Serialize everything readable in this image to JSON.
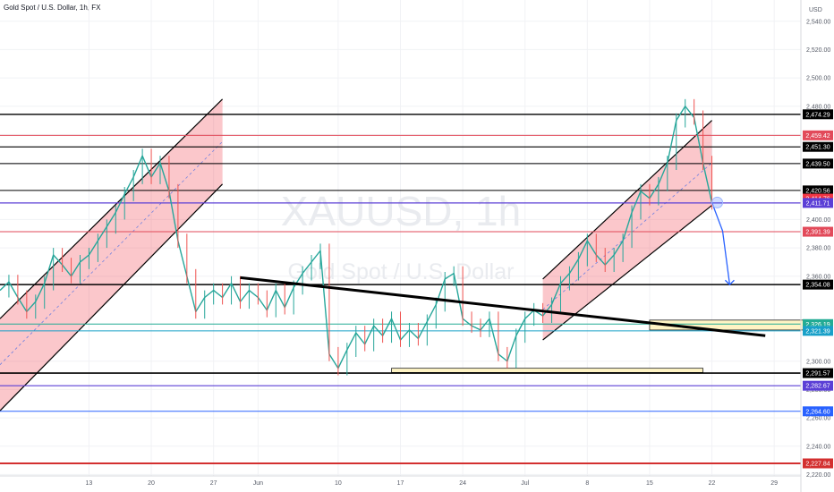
{
  "header": {
    "symbol_title": "Gold Spot / U.S. Dollar, 1h, FX"
  },
  "watermark": {
    "ticker": "XAUUSD, 1h",
    "name": "Gold Spot / U.S. Dollar"
  },
  "chart_data": {
    "type": "line",
    "title": "Gold Spot / U.S. Dollar, 1h, FX",
    "currency_label": "USD",
    "ylim": [
      2219,
      2555
    ],
    "xlim": [
      0,
      90
    ],
    "y_ticks": [
      2540,
      2520,
      2500,
      2480,
      2460,
      2440,
      2400,
      2380,
      2360,
      2300,
      2280,
      2260,
      2240,
      2220
    ],
    "x_ticks": [
      {
        "x": 10,
        "label": "13"
      },
      {
        "x": 17,
        "label": "20"
      },
      {
        "x": 24,
        "label": "27"
      },
      {
        "x": 29,
        "label": "Jun"
      },
      {
        "x": 38,
        "label": "10"
      },
      {
        "x": 45,
        "label": "17"
      },
      {
        "x": 52,
        "label": "24"
      },
      {
        "x": 59,
        "label": "Jul"
      },
      {
        "x": 66,
        "label": "8"
      },
      {
        "x": 73,
        "label": "15"
      },
      {
        "x": 80,
        "label": "22"
      },
      {
        "x": 87,
        "label": "29"
      }
    ],
    "price_series": [
      [
        0,
        2350
      ],
      [
        1,
        2356
      ],
      [
        2,
        2345
      ],
      [
        3,
        2335
      ],
      [
        4,
        2342
      ],
      [
        5,
        2355
      ],
      [
        6,
        2375
      ],
      [
        7,
        2368
      ],
      [
        8,
        2360
      ],
      [
        9,
        2370
      ],
      [
        10,
        2375
      ],
      [
        11,
        2385
      ],
      [
        12,
        2395
      ],
      [
        13,
        2405
      ],
      [
        14,
        2418
      ],
      [
        15,
        2430
      ],
      [
        16,
        2445
      ],
      [
        17,
        2430
      ],
      [
        18,
        2440
      ],
      [
        19,
        2420
      ],
      [
        20,
        2385
      ],
      [
        21,
        2360
      ],
      [
        22,
        2335
      ],
      [
        23,
        2345
      ],
      [
        24,
        2350
      ],
      [
        25,
        2345
      ],
      [
        26,
        2355
      ],
      [
        27,
        2342
      ],
      [
        28,
        2350
      ],
      [
        29,
        2345
      ],
      [
        30,
        2336
      ],
      [
        31,
        2350
      ],
      [
        32,
        2338
      ],
      [
        33,
        2352
      ],
      [
        34,
        2362
      ],
      [
        35,
        2370
      ],
      [
        36,
        2378
      ],
      [
        37,
        2305
      ],
      [
        38,
        2295
      ],
      [
        39,
        2308
      ],
      [
        40,
        2320
      ],
      [
        41,
        2312
      ],
      [
        42,
        2325
      ],
      [
        43,
        2318
      ],
      [
        44,
        2330
      ],
      [
        45,
        2315
      ],
      [
        46,
        2322
      ],
      [
        47,
        2316
      ],
      [
        48,
        2328
      ],
      [
        49,
        2340
      ],
      [
        50,
        2358
      ],
      [
        51,
        2362
      ],
      [
        52,
        2330
      ],
      [
        53,
        2325
      ],
      [
        54,
        2322
      ],
      [
        55,
        2330
      ],
      [
        56,
        2305
      ],
      [
        57,
        2300
      ],
      [
        58,
        2318
      ],
      [
        59,
        2330
      ],
      [
        60,
        2336
      ],
      [
        61,
        2332
      ],
      [
        62,
        2340
      ],
      [
        63,
        2355
      ],
      [
        64,
        2362
      ],
      [
        65,
        2372
      ],
      [
        66,
        2385
      ],
      [
        67,
        2375
      ],
      [
        68,
        2368
      ],
      [
        69,
        2375
      ],
      [
        70,
        2385
      ],
      [
        71,
        2405
      ],
      [
        72,
        2420
      ],
      [
        73,
        2415
      ],
      [
        74,
        2425
      ],
      [
        75,
        2440
      ],
      [
        76,
        2470
      ],
      [
        77,
        2480
      ],
      [
        78,
        2472
      ],
      [
        79,
        2440
      ],
      [
        80,
        2412
      ]
    ],
    "projection": [
      [
        80,
        2412
      ],
      [
        81.2,
        2392
      ],
      [
        82,
        2354
      ]
    ],
    "channels": [
      {
        "lower": [
          [
            0,
            2265
          ],
          [
            25,
            2425
          ]
        ],
        "upper": [
          [
            0,
            2330
          ],
          [
            25,
            2485
          ]
        ]
      },
      {
        "lower": [
          [
            61,
            2315
          ],
          [
            80,
            2410
          ]
        ],
        "upper": [
          [
            61,
            2358
          ],
          [
            80,
            2470
          ]
        ]
      }
    ],
    "trendline": [
      [
        27,
        2359
      ],
      [
        86,
        2318
      ]
    ],
    "zones": [
      {
        "x": [
          44,
          79
        ],
        "y": [
          2295,
          2292
        ]
      },
      {
        "x": [
          73,
          91
        ],
        "y": [
          2329,
          2322
        ]
      }
    ],
    "price_levels": [
      {
        "value": 2474.29,
        "label": "2,474.29",
        "color": "#000000",
        "width": 1.4
      },
      {
        "value": 2459.42,
        "label": "2,459.42",
        "color": "#e24a5a",
        "width": 1
      },
      {
        "value": 2451.3,
        "label": "2,451.30",
        "color": "#000000",
        "width": 1.2
      },
      {
        "value": 2439.5,
        "label": "2,439.50",
        "color": "#000000",
        "width": 1
      },
      {
        "value": 2420.56,
        "label": "2,420.56",
        "color": "#000000",
        "width": 1
      },
      {
        "value": 2414.76,
        "label": "2,414.76",
        "color": "#f23645",
        "width": 0
      },
      {
        "value": 2411.71,
        "label": "2,411.71",
        "color": "#5b3fd6",
        "width": 1.2
      },
      {
        "value": 2391.39,
        "label": "2,391.39",
        "color": "#e24a5a",
        "width": 1
      },
      {
        "value": 2354.08,
        "label": "2,354.08",
        "color": "#000000",
        "width": 1.4
      },
      {
        "value": 2326.19,
        "label": "2,326.19",
        "color": "#22ab94",
        "width": 1
      },
      {
        "value": 2321.39,
        "label": "2,321.39",
        "color": "#18a0c8",
        "width": 1
      },
      {
        "value": 2291.57,
        "label": "2,291.57",
        "color": "#000000",
        "width": 1.6
      },
      {
        "value": 2282.67,
        "label": "2,282.67",
        "color": "#5b3fd6",
        "width": 1.2
      },
      {
        "value": 2264.6,
        "label": "2,264.60",
        "color": "#2962ff",
        "width": 1
      },
      {
        "value": 2227.84,
        "label": "2,227.84",
        "color": "#d32f2f",
        "width": 2
      }
    ]
  }
}
